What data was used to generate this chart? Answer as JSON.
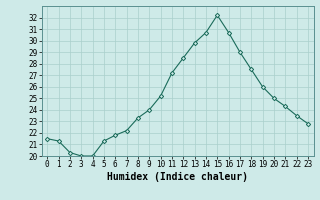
{
  "xlabel": "Humidex (Indice chaleur)",
  "ylabel": "",
  "x": [
    0,
    1,
    2,
    3,
    4,
    5,
    6,
    7,
    8,
    9,
    10,
    11,
    12,
    13,
    14,
    15,
    16,
    17,
    18,
    19,
    20,
    21,
    22,
    23
  ],
  "y": [
    21.5,
    21.3,
    20.3,
    20.0,
    20.0,
    21.3,
    21.8,
    22.2,
    23.3,
    24.0,
    25.2,
    27.2,
    28.5,
    29.8,
    30.7,
    32.2,
    30.7,
    29.0,
    27.5,
    26.0,
    25.0,
    24.3,
    23.5,
    22.8
  ],
  "line_color": "#1a6b5a",
  "marker": "D",
  "marker_size": 2.2,
  "background_color": "#ceeae8",
  "grid_color": "#aacfcc",
  "ylim": [
    20,
    33
  ],
  "yticks": [
    20,
    21,
    22,
    23,
    24,
    25,
    26,
    27,
    28,
    29,
    30,
    31,
    32
  ],
  "xtick_labels": [
    "0",
    "1",
    "2",
    "3",
    "4",
    "5",
    "6",
    "7",
    "8",
    "9",
    "10",
    "11",
    "12",
    "13",
    "14",
    "15",
    "16",
    "17",
    "18",
    "19",
    "20",
    "21",
    "22",
    "23"
  ],
  "axis_fontsize": 6.5,
  "tick_fontsize": 5.5,
  "xlabel_fontsize": 7
}
